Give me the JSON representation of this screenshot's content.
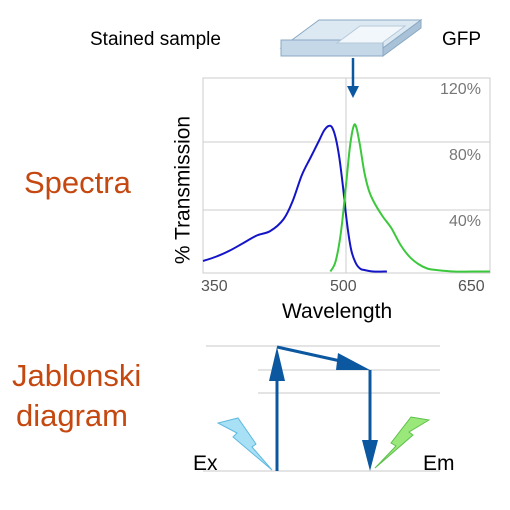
{
  "labels": {
    "sample": "Stained sample",
    "fluorophore": "GFP",
    "spectra_title": "Spectra",
    "jablonski_line1": "Jablonski",
    "jablonski_line2": "diagram",
    "excitation": "Ex",
    "emission": "Em"
  },
  "colors": {
    "title": "#c4480f",
    "excitation_curve": "#1515c8",
    "emission_curve": "#3cc83c",
    "arrows": "#0c58a0",
    "excitation_bolt": "#a8e0f5",
    "emission_bolt": "#9ae87a"
  },
  "chart_data": {
    "type": "line",
    "xlabel": "Wavelength",
    "ylabel": "% Transmission",
    "x_ticks": [
      "350",
      "500",
      "650"
    ],
    "y_ticks": [
      "120%",
      "80%",
      "40%"
    ],
    "xlim": [
      340,
      660
    ],
    "ylim": [
      0,
      130
    ],
    "series": [
      {
        "color": "#1515c8",
        "x": [
          340,
          355,
          370,
          385,
          400,
          415,
          430,
          440,
          450,
          460,
          470,
          475,
          480,
          484,
          488,
          492,
          496,
          500,
          505,
          510,
          515,
          520,
          530,
          545
        ],
        "y": [
          8,
          11,
          15,
          20,
          25,
          28,
          36,
          48,
          65,
          77,
          89,
          95,
          98,
          97,
          90,
          77,
          58,
          36,
          16,
          7,
          3,
          2,
          1,
          1
        ]
      },
      {
        "color": "#3cc83c",
        "x": [
          482,
          488,
          494,
          500,
          504,
          508,
          511,
          515,
          520,
          525,
          530,
          540,
          550,
          560,
          570,
          580,
          590,
          600,
          620,
          640,
          660
        ],
        "y": [
          1,
          8,
          28,
          62,
          85,
          98,
          97,
          85,
          67,
          55,
          48,
          38,
          30,
          19,
          11,
          6,
          3,
          2,
          1,
          1,
          1
        ]
      }
    ]
  }
}
